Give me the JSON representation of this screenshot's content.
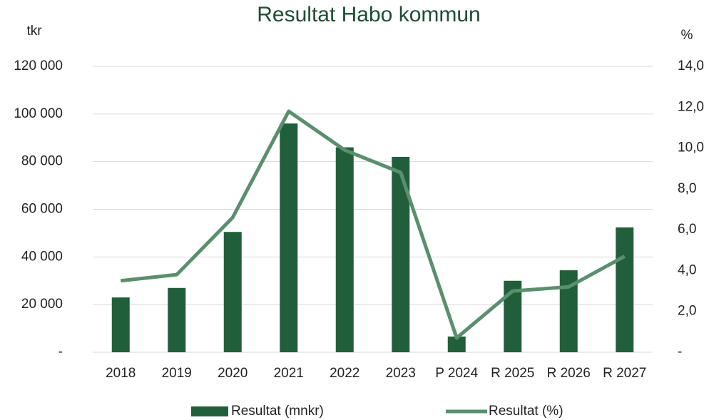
{
  "chart_data": {
    "type": "bar-line",
    "title": "Resultat Habo kommun",
    "y_label": "tkr",
    "y2_label": "%",
    "categories": [
      "2018",
      "2019",
      "2020",
      "2021",
      "2022",
      "2023",
      "P 2024",
      "R 2025",
      "R 2026",
      "R 2027"
    ],
    "series": [
      {
        "name": "Resultat (mnkr)",
        "type": "bar",
        "color": "#215f3b",
        "values": [
          23000,
          27000,
          50500,
          96000,
          86000,
          82000,
          6600,
          30000,
          34400,
          52400
        ]
      },
      {
        "name": "Resultat (%)",
        "type": "line",
        "axis": "y2",
        "color": "#5a8f6e",
        "values": [
          3.5,
          3.8,
          6.6,
          11.8,
          9.9,
          8.8,
          0.7,
          3.0,
          3.2,
          4.7
        ]
      }
    ],
    "ylim": [
      0,
      120000
    ],
    "yticks": [
      {
        "value": 0,
        "label": "-"
      },
      {
        "value": 20000,
        "label": "20 000"
      },
      {
        "value": 40000,
        "label": "40 000"
      },
      {
        "value": 60000,
        "label": "60 000"
      },
      {
        "value": 80000,
        "label": "80 000"
      },
      {
        "value": 100000,
        "label": "100 000"
      },
      {
        "value": 120000,
        "label": "120 000"
      }
    ],
    "y2lim": [
      0,
      14
    ],
    "y2ticks": [
      {
        "value": 0,
        "label": "-"
      },
      {
        "value": 2,
        "label": "2,0"
      },
      {
        "value": 4,
        "label": "4,0"
      },
      {
        "value": 6,
        "label": "6,0"
      },
      {
        "value": 8,
        "label": "8,0"
      },
      {
        "value": 10,
        "label": "10,0"
      },
      {
        "value": 12,
        "label": "12,0"
      },
      {
        "value": 14,
        "label": "14,0"
      }
    ],
    "grid": true,
    "legend": "bottom"
  }
}
